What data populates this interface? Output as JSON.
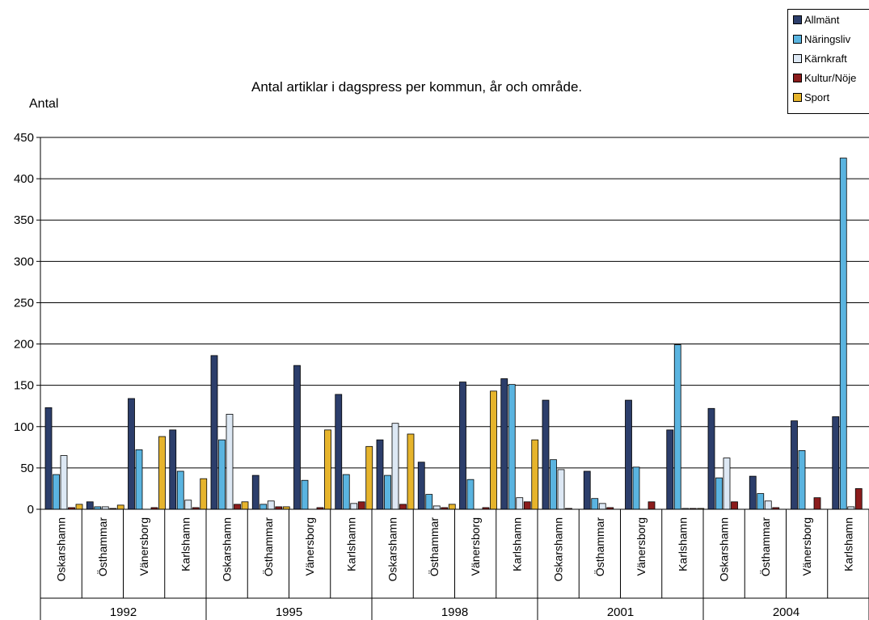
{
  "chart_data": {
    "type": "bar",
    "title": "Antal artiklar i dagspress per kommun, år och område.",
    "ylabel": "Antal",
    "xlabel": "",
    "ylim": [
      0,
      450
    ],
    "yticks": [
      0,
      50,
      100,
      150,
      200,
      250,
      300,
      350,
      400,
      450
    ],
    "grid": true,
    "legend_position": "top-right",
    "groups": [
      "1992",
      "1995",
      "1998",
      "2001",
      "2004"
    ],
    "subcategories": [
      "Oskarshamn",
      "Östhammar",
      "Vänersborg",
      "Karlshamn"
    ],
    "categories": [
      "1992 Oskarshamn",
      "1992 Östhammar",
      "1992 Vänersborg",
      "1992 Karlshamn",
      "1995 Oskarshamn",
      "1995 Östhammar",
      "1995 Vänersborg",
      "1995 Karlshamn",
      "1998 Oskarshamn",
      "1998 Östhammar",
      "1998 Vänersborg",
      "1998 Karlshamn",
      "2001 Oskarshamn",
      "2001 Östhammar",
      "2001 Vänersborg",
      "2001 Karlshamn",
      "2004 Oskarshamn",
      "2004 Östhammar",
      "2004 Vänersborg",
      "2004 Karlshamn"
    ],
    "series": [
      {
        "name": "Allmänt",
        "color": "#2c3e6b",
        "values": [
          123,
          9,
          134,
          96,
          186,
          41,
          174,
          139,
          84,
          57,
          154,
          158,
          132,
          46,
          132,
          96,
          122,
          40,
          107,
          112
        ]
      },
      {
        "name": "Näringsliv",
        "color": "#5ab4e0",
        "values": [
          42,
          3,
          72,
          46,
          84,
          6,
          35,
          42,
          41,
          18,
          36,
          151,
          60,
          13,
          51,
          199,
          38,
          19,
          71,
          425
        ]
      },
      {
        "name": "Kärnkraft",
        "color": "#dde8f4",
        "values": [
          65,
          3,
          0,
          11,
          115,
          10,
          0,
          7,
          104,
          4,
          0,
          14,
          48,
          7,
          0,
          1,
          62,
          10,
          0,
          3
        ]
      },
      {
        "name": "Kultur/Nöje",
        "color": "#8b1c1c",
        "values": [
          2,
          1,
          2,
          2,
          6,
          3,
          2,
          9,
          6,
          2,
          2,
          9,
          1,
          2,
          9,
          1,
          9,
          2,
          14,
          25
        ]
      },
      {
        "name": "Sport",
        "color": "#e6b42c",
        "values": [
          6,
          5,
          88,
          37,
          9,
          3,
          96,
          76,
          91,
          6,
          143,
          84,
          0,
          0,
          0,
          1,
          0,
          0,
          0,
          0
        ]
      }
    ]
  }
}
